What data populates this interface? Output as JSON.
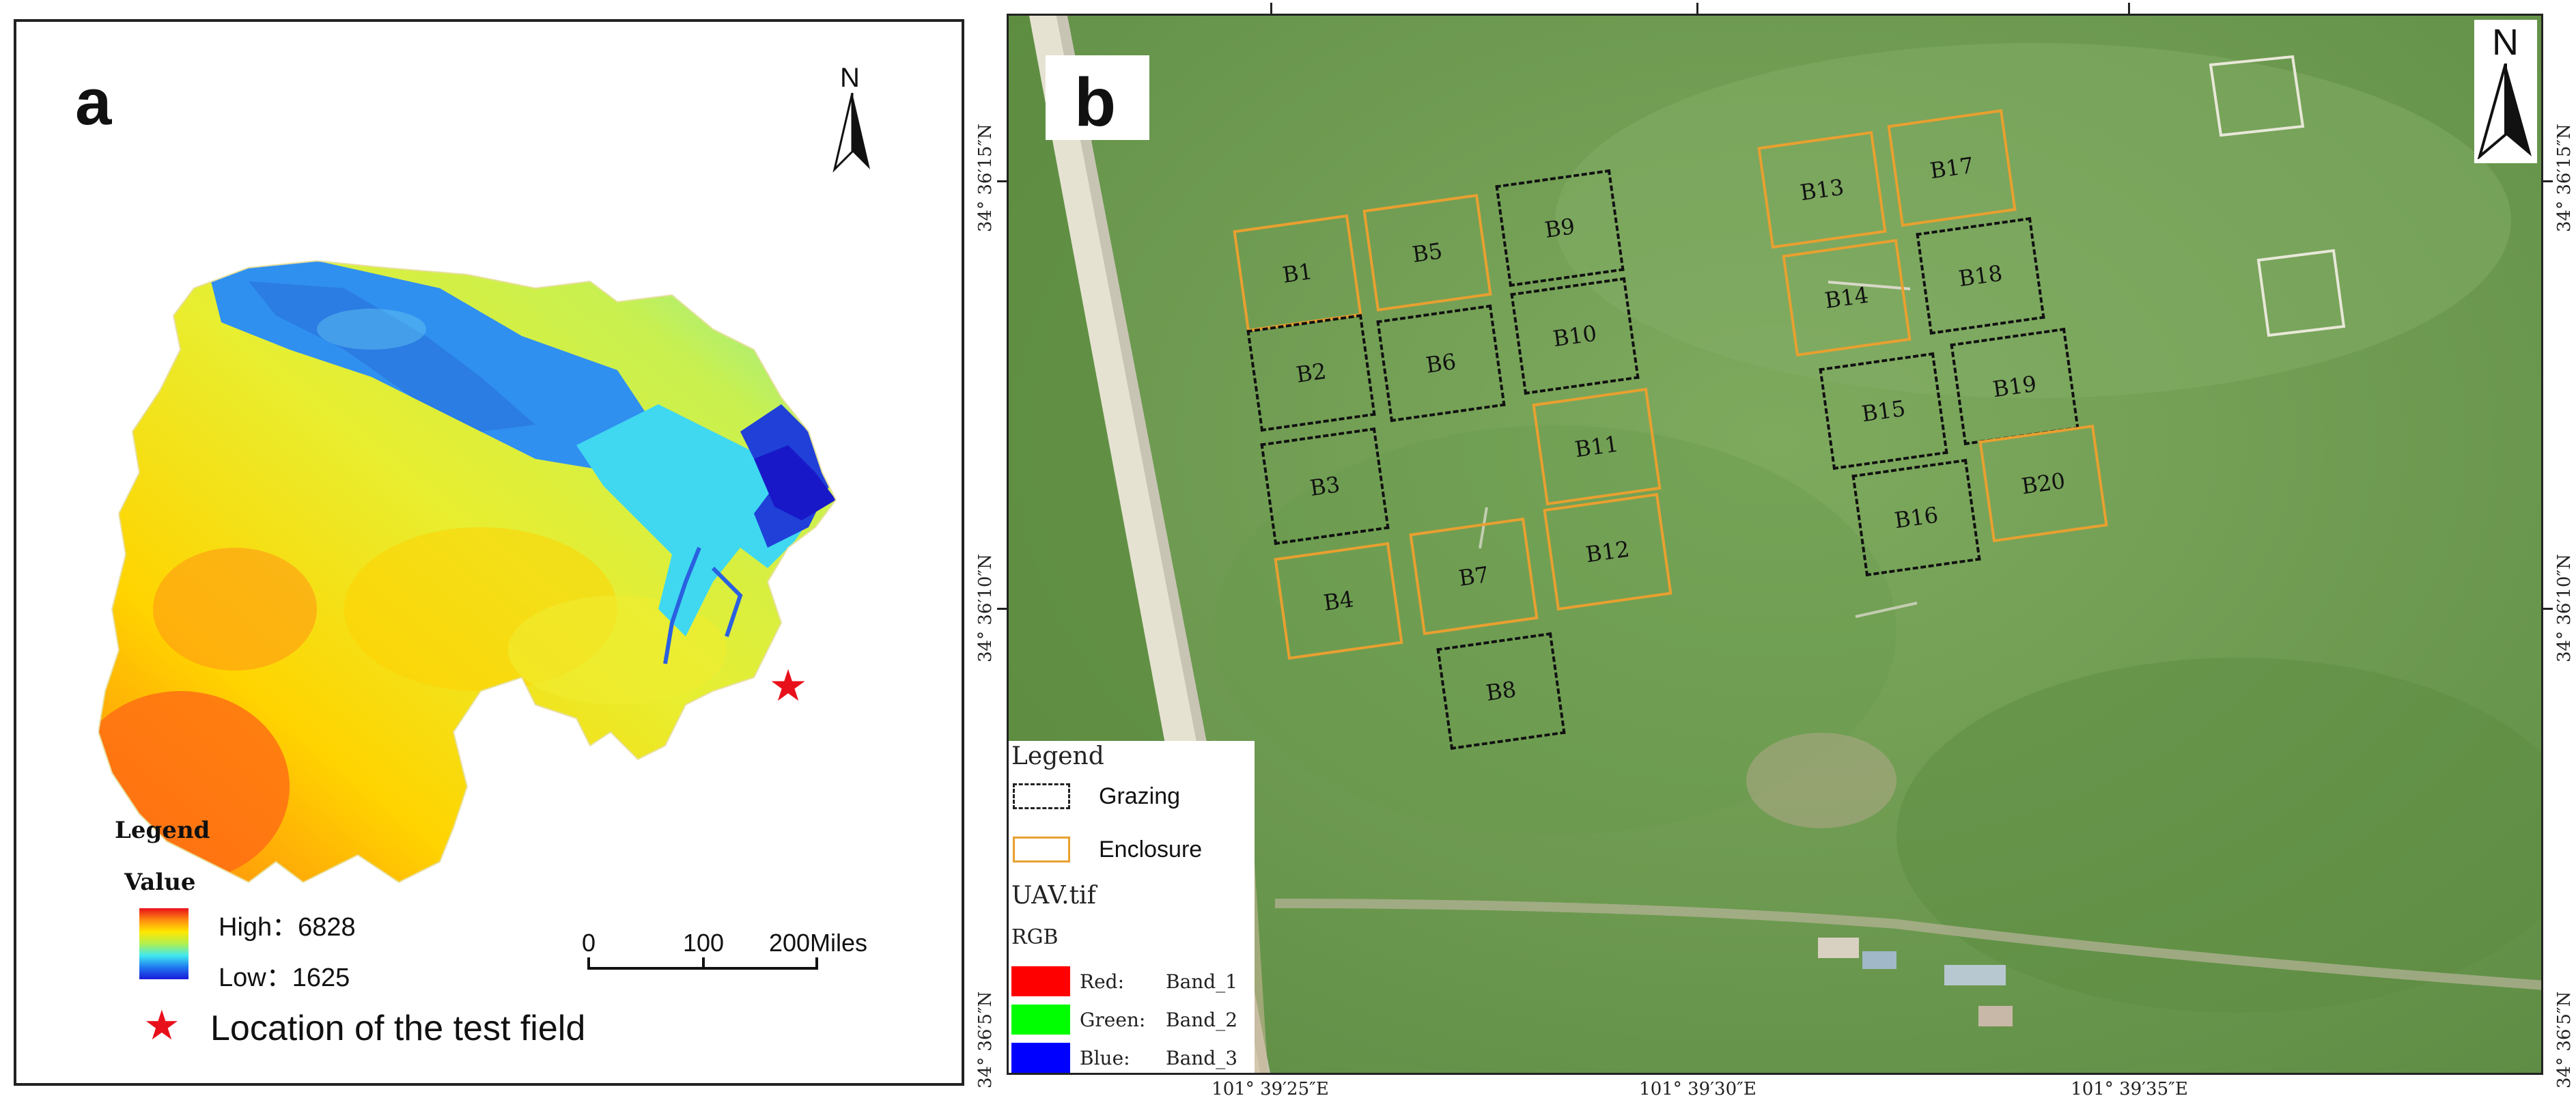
{
  "panel_a": {
    "letter": "a",
    "north_label": "N",
    "legend": {
      "title": "Legend",
      "value_title": "Value",
      "high": "High：6828",
      "low": "Low：1625",
      "ramp_colors": [
        "#e8101a",
        "#ff8c10",
        "#ffe800",
        "#b0f050",
        "#40e8f0",
        "#1f78f0",
        "#1a1ad8"
      ],
      "marker_label": "Location of the test field",
      "marker_color": "#e8101a"
    },
    "scale_bar": {
      "labels": [
        "0",
        "100",
        "200Miles"
      ]
    }
  },
  "panel_b": {
    "letter": "b",
    "north_label": "N",
    "plots": [
      {
        "label": "B1",
        "type": "enclosure"
      },
      {
        "label": "B2",
        "type": "grazing"
      },
      {
        "label": "B3",
        "type": "grazing"
      },
      {
        "label": "B4",
        "type": "enclosure"
      },
      {
        "label": "B5",
        "type": "enclosure"
      },
      {
        "label": "B6",
        "type": "grazing"
      },
      {
        "label": "B7",
        "type": "enclosure"
      },
      {
        "label": "B8",
        "type": "grazing"
      },
      {
        "label": "B9",
        "type": "grazing"
      },
      {
        "label": "B10",
        "type": "grazing"
      },
      {
        "label": "B11",
        "type": "enclosure"
      },
      {
        "label": "B12",
        "type": "enclosure"
      },
      {
        "label": "B13",
        "type": "enclosure"
      },
      {
        "label": "B14",
        "type": "enclosure"
      },
      {
        "label": "B15",
        "type": "grazing"
      },
      {
        "label": "B16",
        "type": "grazing"
      },
      {
        "label": "B17",
        "type": "enclosure"
      },
      {
        "label": "B18",
        "type": "grazing"
      },
      {
        "label": "B19",
        "type": "grazing"
      },
      {
        "label": "B20",
        "type": "enclosure"
      }
    ],
    "legend": {
      "title": "Legend",
      "grazing": "Grazing",
      "enclosure": "Enclosure",
      "raster": "UAV.tif",
      "rgb": "RGB",
      "bands": [
        {
          "channel": "Red:",
          "band": "Band_1",
          "color": "#ff0000"
        },
        {
          "channel": "Green:",
          "band": "Band_2",
          "color": "#00ff00"
        },
        {
          "channel": "Blue:",
          "band": "Band_3",
          "color": "#0000ff"
        }
      ],
      "grazing_color": "#222222",
      "enclosure_color": "#e8a030"
    },
    "longitudes": [
      "101° 39′25″E",
      "101° 39′30″E",
      "101° 39′35″E"
    ],
    "latitudes": [
      "34° 36′15″N",
      "34° 36′10″N",
      "34° 36′5″N"
    ]
  }
}
